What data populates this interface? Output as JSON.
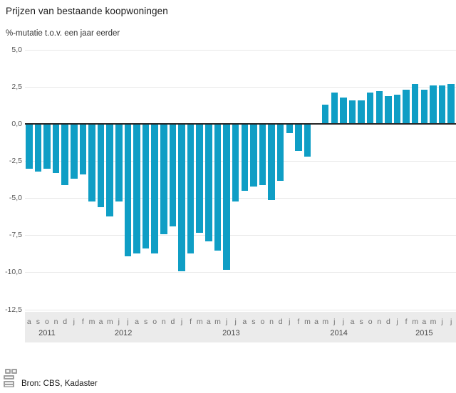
{
  "header": {
    "title": "Prijzen van bestaande koopwoningen",
    "subtitle": "%-mutatie t.o.v. een jaar eerder"
  },
  "source": {
    "label": "Bron: CBS, Kadaster",
    "logo": "cbs-logo"
  },
  "colors": {
    "bar": "#0f9ec5",
    "zero_line": "#262626",
    "gridline": "#e8e8e8",
    "axis_text": "#555555",
    "strip_background": "#ebebeb"
  },
  "chart_data": {
    "type": "bar",
    "title": "Prijzen van bestaande koopwoningen",
    "ylabel": "%-mutatie t.o.v. een jaar eerder",
    "xlabel": "",
    "ylim": [
      -12.5,
      5.0
    ],
    "grid": true,
    "legend": false,
    "ytick_values": [
      5.0,
      2.5,
      0.0,
      -2.5,
      -5.0,
      -7.5,
      -10.0,
      -12.5
    ],
    "ytick_labels": [
      "5,0",
      "2,5",
      "0,0",
      "-2,5",
      "-5,0",
      "-7,5",
      "-10,0",
      "-12,5"
    ],
    "months": [
      "a",
      "s",
      "o",
      "n",
      "d",
      "j",
      "f",
      "m",
      "a",
      "m",
      "j",
      "j",
      "a",
      "s",
      "o",
      "n",
      "d",
      "j",
      "f",
      "m",
      "a",
      "m",
      "j",
      "j",
      "a",
      "s",
      "o",
      "n",
      "d",
      "j",
      "f",
      "m",
      "a",
      "m",
      "j",
      "j",
      "a",
      "s",
      "o",
      "n",
      "d",
      "j",
      "f",
      "m",
      "a",
      "m",
      "j",
      "j"
    ],
    "values": [
      -3.0,
      -3.2,
      -3.0,
      -3.3,
      -4.1,
      -3.7,
      -3.4,
      -5.2,
      -5.6,
      -6.2,
      -5.2,
      -8.9,
      -8.7,
      -8.4,
      -8.7,
      -7.4,
      -6.9,
      -9.9,
      -8.7,
      -7.3,
      -7.9,
      -8.5,
      -9.8,
      -5.2,
      -4.5,
      -4.2,
      -4.1,
      -5.1,
      -3.8,
      -0.6,
      -1.8,
      -2.2,
      0.0,
      1.3,
      2.1,
      1.8,
      1.6,
      1.6,
      2.1,
      2.2,
      1.9,
      2.0,
      2.3,
      2.7,
      2.3,
      2.6,
      2.6,
      2.7
    ],
    "years": [
      {
        "label": "2011",
        "from": 0,
        "to": 4
      },
      {
        "label": "2012",
        "from": 5,
        "to": 16
      },
      {
        "label": "2013",
        "from": 17,
        "to": 28
      },
      {
        "label": "2014",
        "from": 29,
        "to": 40
      },
      {
        "label": "2015",
        "from": 41,
        "to": 47
      }
    ]
  }
}
